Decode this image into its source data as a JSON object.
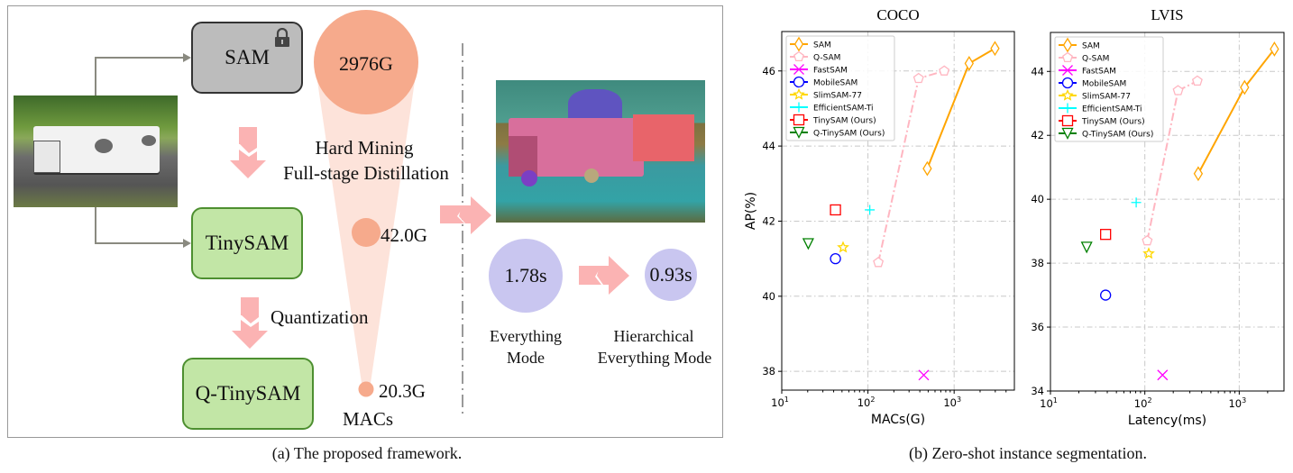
{
  "framework": {
    "models": {
      "teacher": "SAM",
      "student": "TinySAM",
      "quantized": "Q-TinySAM"
    },
    "steps": {
      "distill_line1": "Hard Mining",
      "distill_line2": "Full-stage Distillation",
      "quantization": "Quantization"
    },
    "macs": {
      "sam": "2976G",
      "tinysam": "42.0G",
      "qtinysam": "20.3G",
      "label": "MACs"
    },
    "modes": {
      "everything_time": "1.78s",
      "everything_line1": "Everything",
      "everything_line2": "Mode",
      "hier_time": "0.93s",
      "hier_line1": "Hierarchical",
      "hier_line2": "Everything Mode"
    },
    "icons": [
      "lock-icon",
      "down-arrow-icon",
      "right-arrow-icon"
    ],
    "colors": {
      "teacher_box": "#bcbcbc",
      "student_box": "#c2e6a6",
      "macs_circle": "#f6aa8c",
      "time_circle": "#c9c6f0",
      "arrow": "#fbb3b3"
    }
  },
  "captions": {
    "a": "(a) The proposed framework.",
    "b": "(b) Zero-shot instance segmentation."
  },
  "chart_data": [
    {
      "type": "scatter",
      "title": "COCO",
      "xlabel": "MACs(G)",
      "ylabel": "AP(%)",
      "xscale": "log",
      "xlim": [
        10,
        5000
      ],
      "ylim": [
        37.5,
        47.05
      ],
      "xticks": [
        10,
        100,
        1000
      ],
      "yticks": [
        38,
        40,
        42,
        44,
        46
      ],
      "grid": true,
      "legend": "top-left",
      "series": [
        {
          "name": "SAM",
          "color": "#ffa500",
          "marker": "diamond",
          "line": "solid",
          "x": [
            488,
            1493,
            2976
          ],
          "y": [
            43.4,
            46.2,
            46.6
          ]
        },
        {
          "name": "Q-SAM",
          "color": "#ffb6c1",
          "marker": "pentagon",
          "line": "dashdot",
          "x": [
            132,
            387,
            767
          ],
          "y": [
            40.9,
            45.8,
            46.0
          ]
        },
        {
          "name": "FastSAM",
          "color": "#ff00ff",
          "marker": "x",
          "line": "none",
          "x": [
            444
          ],
          "y": [
            37.9
          ]
        },
        {
          "name": "MobileSAM",
          "color": "#0000ff",
          "marker": "circle",
          "line": "none",
          "x": [
            42.0
          ],
          "y": [
            41.0
          ]
        },
        {
          "name": "SlimSAM-77",
          "color": "#ffd700",
          "marker": "star",
          "line": "none",
          "x": [
            51.5
          ],
          "y": [
            41.3
          ]
        },
        {
          "name": "EfficientSAM-Ti",
          "color": "#00ffff",
          "marker": "plus",
          "line": "none",
          "x": [
            105
          ],
          "y": [
            42.3
          ]
        },
        {
          "name": "TinySAM (Ours)",
          "color": "#ff0000",
          "marker": "square",
          "line": "none",
          "x": [
            42.0
          ],
          "y": [
            42.3
          ]
        },
        {
          "name": "Q-TinySAM (Ours)",
          "color": "#008000",
          "marker": "triangle-down",
          "line": "none",
          "x": [
            20.3
          ],
          "y": [
            41.4
          ]
        }
      ]
    },
    {
      "type": "scatter",
      "title": "LVIS",
      "xlabel": "Latency(ms)",
      "ylabel": "",
      "xscale": "log",
      "xlim": [
        10,
        2980
      ],
      "ylim": [
        34,
        45.22
      ],
      "xticks": [
        10,
        100,
        1000
      ],
      "yticks": [
        34,
        36,
        38,
        40,
        42,
        44
      ],
      "grid": true,
      "legend": "top-left",
      "series": [
        {
          "name": "SAM",
          "color": "#ffa500",
          "marker": "diamond",
          "line": "solid",
          "x": [
            368,
            1140,
            2360
          ],
          "y": [
            40.8,
            43.5,
            44.7
          ]
        },
        {
          "name": "Q-SAM",
          "color": "#ffb6c1",
          "marker": "pentagon",
          "line": "dashdot",
          "x": [
            106,
            225,
            360
          ],
          "y": [
            38.7,
            43.4,
            43.7
          ]
        },
        {
          "name": "FastSAM",
          "color": "#ff00ff",
          "marker": "x",
          "line": "none",
          "x": [
            154
          ],
          "y": [
            34.5
          ]
        },
        {
          "name": "MobileSAM",
          "color": "#0000ff",
          "marker": "circle",
          "line": "none",
          "x": [
            38.4
          ],
          "y": [
            37.0
          ]
        },
        {
          "name": "SlimSAM-77",
          "color": "#ffd700",
          "marker": "star",
          "line": "none",
          "x": [
            110
          ],
          "y": [
            38.3
          ]
        },
        {
          "name": "EfficientSAM-Ti",
          "color": "#00ffff",
          "marker": "plus",
          "line": "none",
          "x": [
            81
          ],
          "y": [
            39.9
          ]
        },
        {
          "name": "TinySAM (Ours)",
          "color": "#ff0000",
          "marker": "square",
          "line": "none",
          "x": [
            38.4
          ],
          "y": [
            38.9
          ]
        },
        {
          "name": "Q-TinySAM (Ours)",
          "color": "#008000",
          "marker": "triangle-down",
          "line": "none",
          "x": [
            24.2
          ],
          "y": [
            38.5
          ]
        }
      ]
    }
  ]
}
